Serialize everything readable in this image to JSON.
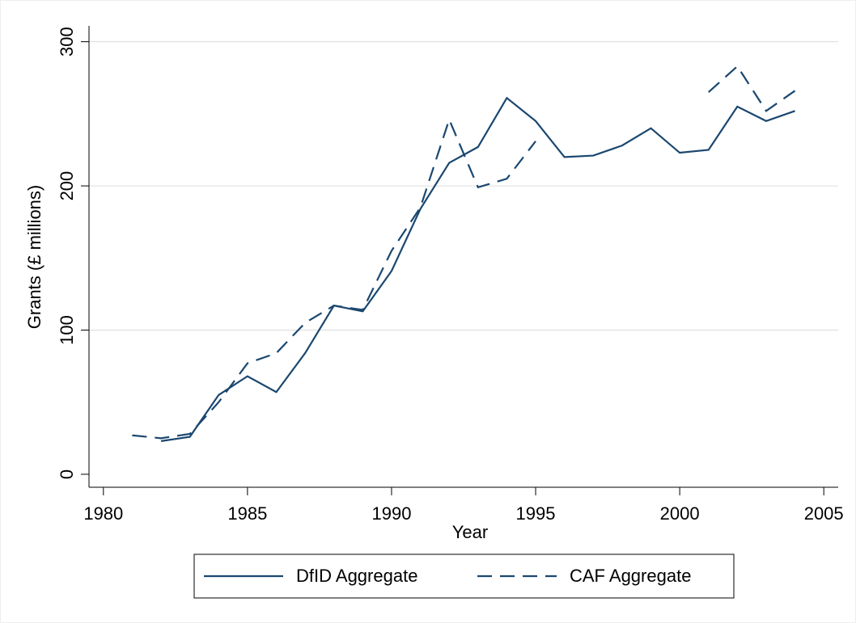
{
  "chart_data": {
    "type": "line",
    "x_label": "Year",
    "y_label": "Grants (£ millions)",
    "x": [
      1981,
      1982,
      1983,
      1984,
      1985,
      1986,
      1987,
      1988,
      1989,
      1990,
      1991,
      1992,
      1993,
      1994,
      1995,
      1996,
      1997,
      1998,
      1999,
      2000,
      2001,
      2002,
      2003,
      2004
    ],
    "series": [
      {
        "name": "DfID Aggregate",
        "color": "#1a476f",
        "line_style": "solid",
        "values": [
          null,
          23,
          26,
          55,
          68,
          57,
          84,
          117,
          113,
          141,
          184,
          216,
          227,
          261,
          245,
          220,
          221,
          228,
          240,
          223,
          225,
          255,
          245,
          252
        ]
      },
      {
        "name": "CAF Aggregate",
        "color": "#1a476f",
        "line_style": "dashed",
        "values": [
          27,
          25,
          28,
          50,
          77,
          84,
          105,
          117,
          114,
          155,
          185,
          246,
          199,
          205,
          231,
          null,
          null,
          null,
          null,
          null,
          265,
          283,
          252,
          266
        ]
      }
    ],
    "xlim": [
      1979.5,
      2005.5
    ],
    "xticks": [
      1980,
      1985,
      1990,
      1995,
      2000,
      2005
    ],
    "ylim": [
      -9,
      311
    ],
    "yticks": [
      0,
      100,
      200,
      300
    ],
    "grid": true,
    "legend": "bottom"
  }
}
